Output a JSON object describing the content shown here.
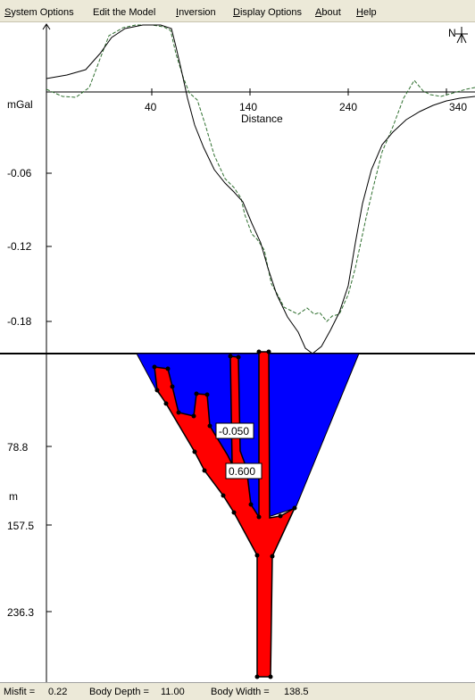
{
  "menu": {
    "items": [
      {
        "accel": "S",
        "rest": "ystem Options"
      },
      {
        "accel": "",
        "rest": "Edit the Model"
      },
      {
        "accel": "I",
        "rest": "nversion"
      },
      {
        "accel": "D",
        "rest": "isplay Options"
      },
      {
        "accel": "A",
        "rest": "bout"
      },
      {
        "accel": "H",
        "rest": "elp"
      }
    ]
  },
  "profile": {
    "north_label": "N",
    "y_unit": "mGal",
    "x_axis_title": "Distance",
    "x_ticks": [
      40,
      140,
      240,
      340
    ],
    "y_ticks": [
      "-0.06",
      "-0.12",
      "-0.18"
    ]
  },
  "model": {
    "depth_unit": "m",
    "depth_ticks": [
      "78.8",
      "157.5",
      "236.3"
    ],
    "density_labels": [
      "-0.050",
      "0.600"
    ],
    "colors": {
      "basin": "#0000ff",
      "body": "#ff0000",
      "observed": "#2f6f2f",
      "calculated": "#000000"
    }
  },
  "status": {
    "misfit_label": "Misfit =",
    "misfit_value": "0.22",
    "depth_label": "Body Depth =",
    "depth_value": "11.00",
    "width_label": "Body Width =",
    "width_value": "138.5"
  }
}
